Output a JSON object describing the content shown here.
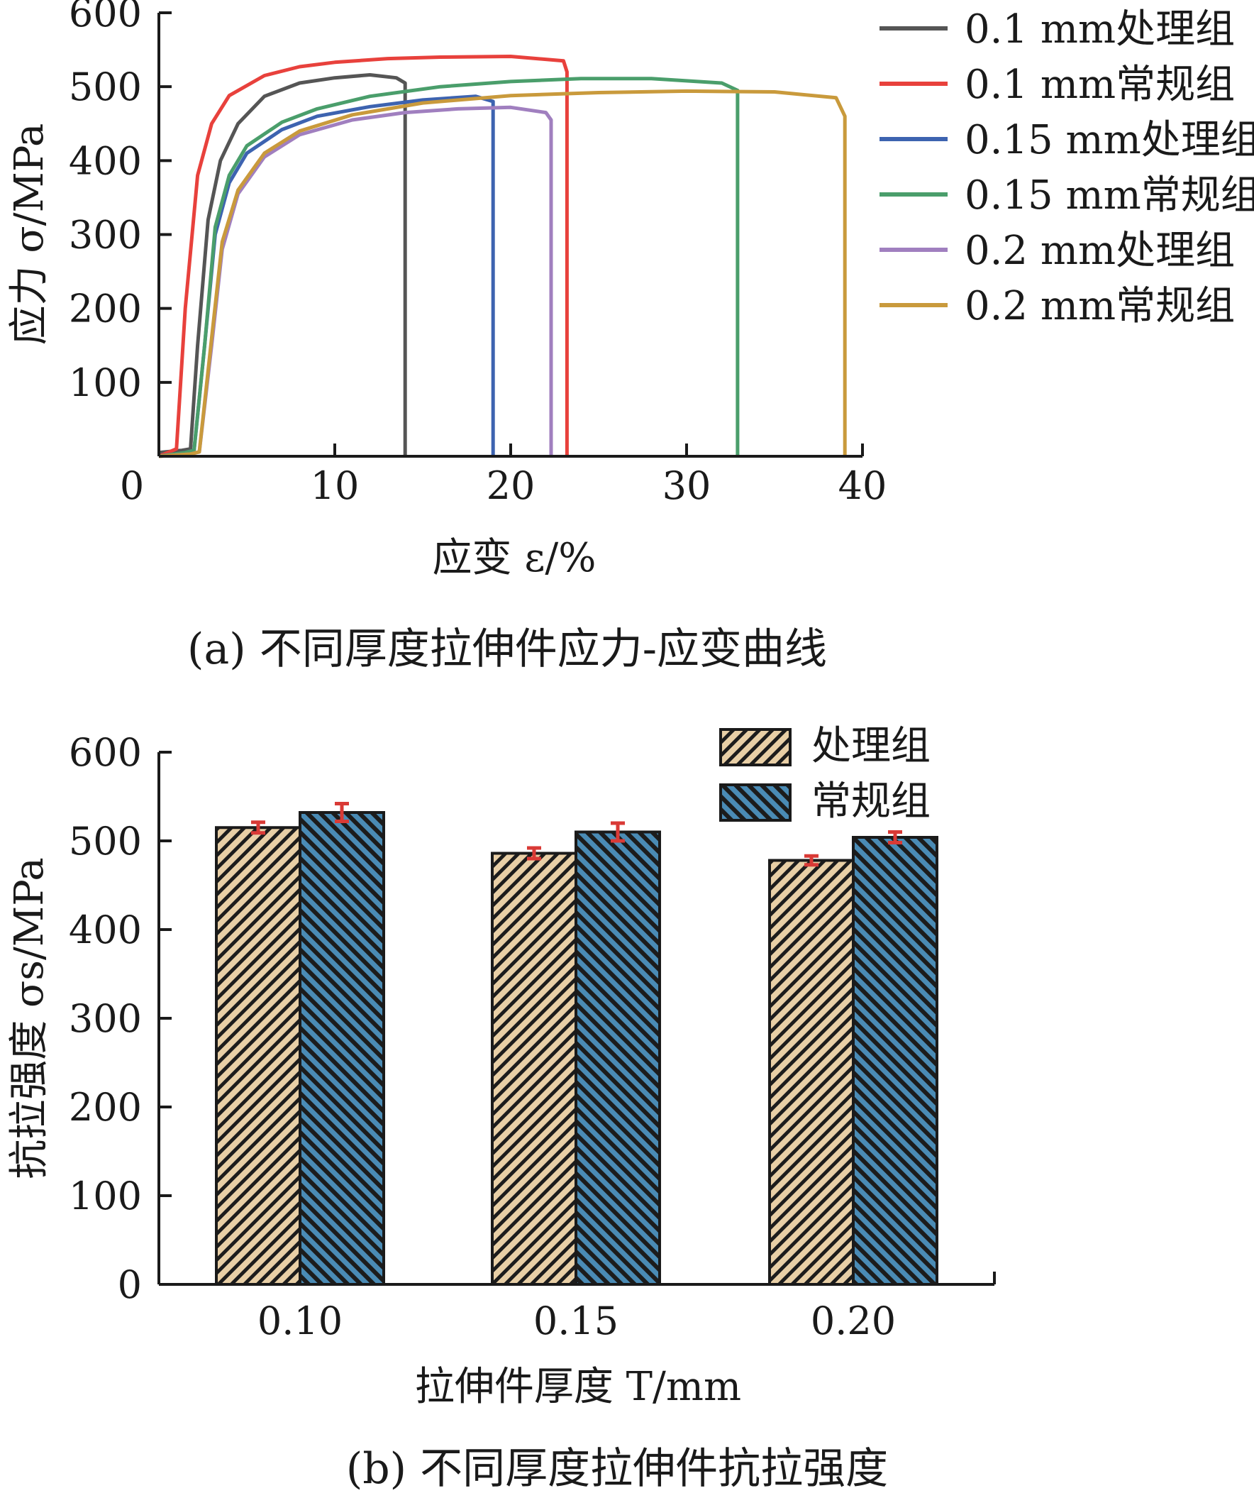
{
  "chart_data": [
    {
      "type": "line",
      "caption": "(a) 不同厚度拉伸件应力-应变曲线",
      "xlabel": "应变 ε/%",
      "ylabel": "应力 σ/MPa",
      "xlim": [
        0,
        40
      ],
      "ylim": [
        0,
        600
      ],
      "xticks": [
        "0",
        "10",
        "20",
        "30",
        "40"
      ],
      "yticks": [
        "100",
        "200",
        "300",
        "400",
        "500",
        "600"
      ],
      "legend_position": "right",
      "series": [
        {
          "name": "0.1 mm处理组",
          "color": "#555555",
          "elongation": 14.0,
          "ultimate": 518,
          "x": [
            0,
            1.3,
            1.8,
            2.2,
            2.8,
            3.5,
            4.5,
            6,
            8,
            10,
            12,
            13.5,
            14.0,
            14.0
          ],
          "y": [
            5,
            8,
            10,
            150,
            320,
            400,
            450,
            487,
            505,
            512,
            516,
            512,
            505,
            0
          ]
        },
        {
          "name": "0.1 mm常规组",
          "color": "#e8413c",
          "elongation": 23.2,
          "ultimate": 542,
          "x": [
            0,
            0.5,
            1.0,
            1.5,
            2.2,
            3.0,
            4.0,
            6,
            8,
            10,
            13,
            16,
            20,
            23,
            23.2,
            23.2
          ],
          "y": [
            0,
            5,
            10,
            200,
            380,
            450,
            488,
            515,
            527,
            533,
            538,
            540,
            541,
            535,
            520,
            0
          ]
        },
        {
          "name": "0.15 mm处理组",
          "color": "#3d63b0",
          "elongation": 19.0,
          "ultimate": 490,
          "x": [
            0,
            1.5,
            2.0,
            2.6,
            3.2,
            4.0,
            5,
            7,
            9,
            12,
            15,
            18,
            19.0,
            19.0
          ],
          "y": [
            0,
            5,
            8,
            150,
            300,
            370,
            410,
            442,
            460,
            473,
            482,
            487,
            480,
            0
          ]
        },
        {
          "name": "0.15 mm常规组",
          "color": "#4a9e6b",
          "elongation": 32.9,
          "ultimate": 513,
          "x": [
            0,
            1.5,
            2.0,
            2.6,
            3.2,
            4.0,
            5,
            7,
            9,
            12,
            16,
            20,
            24,
            28,
            32,
            32.9,
            32.9
          ],
          "y": [
            0,
            5,
            8,
            150,
            310,
            380,
            420,
            452,
            470,
            487,
            500,
            507,
            511,
            511,
            505,
            495,
            0
          ]
        },
        {
          "name": "0.2 mm处理组",
          "color": "#a07fbf",
          "elongation": 22.3,
          "ultimate": 475,
          "x": [
            0,
            1.8,
            2.3,
            3.0,
            3.6,
            4.5,
            6,
            8,
            11,
            14,
            17,
            20,
            22,
            22.3,
            22.3
          ],
          "y": [
            0,
            3,
            6,
            150,
            280,
            355,
            405,
            435,
            455,
            465,
            470,
            472,
            465,
            455,
            0
          ]
        },
        {
          "name": "0.2 mm常规组",
          "color": "#c99a3c",
          "elongation": 39.0,
          "ultimate": 496,
          "x": [
            0,
            1.8,
            2.3,
            3.0,
            3.6,
            4.5,
            6,
            8,
            11,
            15,
            20,
            25,
            30,
            35,
            38.5,
            39.0,
            39.0
          ],
          "y": [
            0,
            3,
            6,
            160,
            290,
            360,
            410,
            440,
            462,
            478,
            488,
            492,
            494,
            493,
            485,
            460,
            0
          ]
        }
      ]
    },
    {
      "type": "bar",
      "caption": "(b) 不同厚度拉伸件抗拉强度",
      "xlabel": "拉伸件厚度 T/mm",
      "ylabel": "抗拉强度 σs/MPa",
      "categories": [
        "0.10",
        "0.15",
        "0.20"
      ],
      "ylim": [
        0,
        600
      ],
      "yticks": [
        "0",
        "100",
        "200",
        "300",
        "400",
        "500",
        "600"
      ],
      "legend_position": "top-right",
      "series": [
        {
          "name": "处理组",
          "color": "#e8cfa6",
          "values": [
            515,
            486,
            478
          ],
          "errors": [
            6,
            6,
            5
          ]
        },
        {
          "name": "常规组",
          "color": "#4a8bb5",
          "values": [
            532,
            510,
            504
          ],
          "errors": [
            10,
            10,
            6
          ]
        }
      ],
      "error_bar_color": "#d93a36"
    }
  ]
}
